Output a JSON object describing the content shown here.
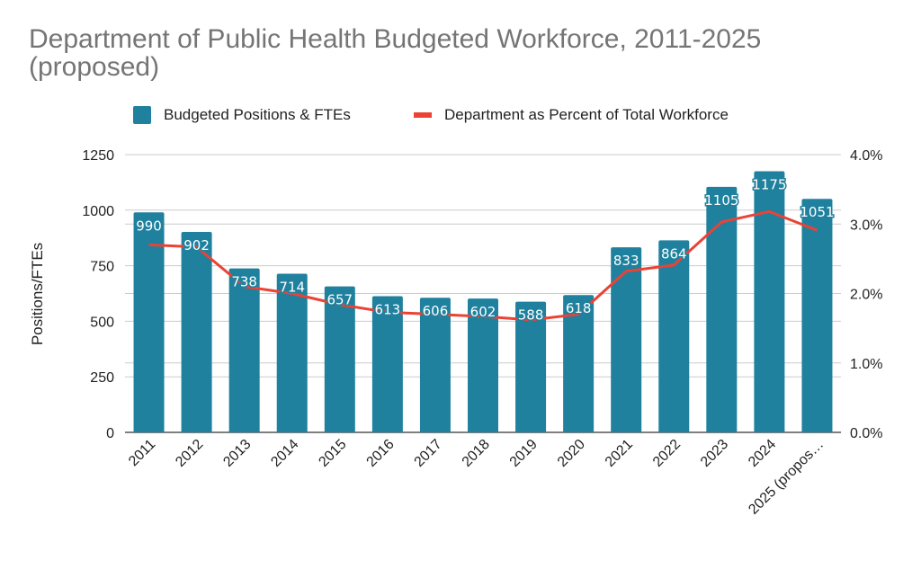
{
  "chart_data": {
    "type": "bar",
    "title": "Department of Public Health Budgeted Workforce, 2011-2025 (proposed)",
    "categories": [
      "2011",
      "2012",
      "2013",
      "2014",
      "2015",
      "2016",
      "2017",
      "2018",
      "2019",
      "2020",
      "2021",
      "2022",
      "2023",
      "2024",
      "2025 (propos…"
    ],
    "series": [
      {
        "name": "Budgeted Positions & FTEs",
        "type": "bar",
        "axis": "left",
        "color": "#1f819e",
        "values": [
          990,
          902,
          738,
          714,
          657,
          613,
          606,
          602,
          588,
          618,
          833,
          864,
          1105,
          1175,
          1051
        ],
        "data_labels": [
          "990",
          "902",
          "738",
          "714",
          "657",
          "613",
          "606",
          "602",
          "588",
          "618",
          "833",
          "864",
          "1105",
          "1175",
          "1051"
        ]
      },
      {
        "name": "Department as Percent of Total Workforce",
        "type": "line",
        "axis": "right",
        "color": "#ea4335",
        "values": [
          2.7,
          2.67,
          2.1,
          2.0,
          1.84,
          1.73,
          1.7,
          1.67,
          1.62,
          1.7,
          2.32,
          2.41,
          3.03,
          3.18,
          2.91
        ]
      }
    ],
    "xlabel": "",
    "ylabel": "Positions/FTEs",
    "ylabel_right": "",
    "ylim": [
      0,
      1250
    ],
    "y_ticks": [
      "0",
      "250",
      "500",
      "750",
      "1000",
      "1250"
    ],
    "y_tick_values": [
      0,
      250,
      500,
      750,
      1000,
      1250
    ],
    "ylim_right": [
      0,
      4
    ],
    "y_right_ticks": [
      "0.0%",
      "1.0%",
      "2.0%",
      "3.0%",
      "4.0%"
    ],
    "y_right_tick_values": [
      0,
      1,
      2,
      3,
      4
    ],
    "grid": true,
    "legend_position": "top-center"
  },
  "legend": [
    {
      "label": "Budgeted Positions & FTEs",
      "color": "#1f819e",
      "kind": "bar"
    },
    {
      "label": "Department as Percent of Total Workforce",
      "color": "#ea4335",
      "kind": "line"
    }
  ]
}
